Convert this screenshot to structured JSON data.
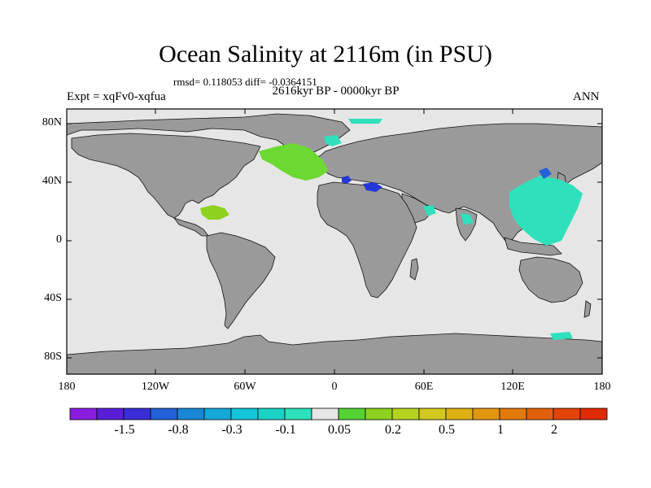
{
  "title": "Ocean Salinity at 2116m (in PSU)",
  "stats": "rmsd= 0.118053 diff= -0.0364151",
  "period": "2616kyr BP - 0000kyr BP",
  "experiment": "Expt = xqFv0-xqfua",
  "season": "ANN",
  "lat_labels": [
    "80N",
    "40N",
    "0",
    "40S",
    "80S"
  ],
  "lon_labels": [
    "180",
    "120W",
    "60W",
    "0",
    "60E",
    "120E",
    "180"
  ],
  "colorbar": {
    "colors": [
      "#8a1ce0",
      "#5a1ed8",
      "#3a2ed8",
      "#2460d8",
      "#1a86d8",
      "#14a8d8",
      "#14c4d8",
      "#1ad2c4",
      "#2ee0bc",
      "#e6e6e6",
      "#54d232",
      "#8cd21e",
      "#b4d21e",
      "#d2c81e",
      "#deb014",
      "#e2960e",
      "#e27a0a",
      "#e2600a",
      "#e24408",
      "#e02a08"
    ],
    "labels": [
      "-1.5",
      "-0.8",
      "-0.3",
      "-0.1",
      "0.05",
      "0.2",
      "0.5",
      "1",
      "2"
    ]
  },
  "colors": {
    "land": "#9a9a9a",
    "ocean": "#e6e6e6",
    "coast": "#000000"
  }
}
